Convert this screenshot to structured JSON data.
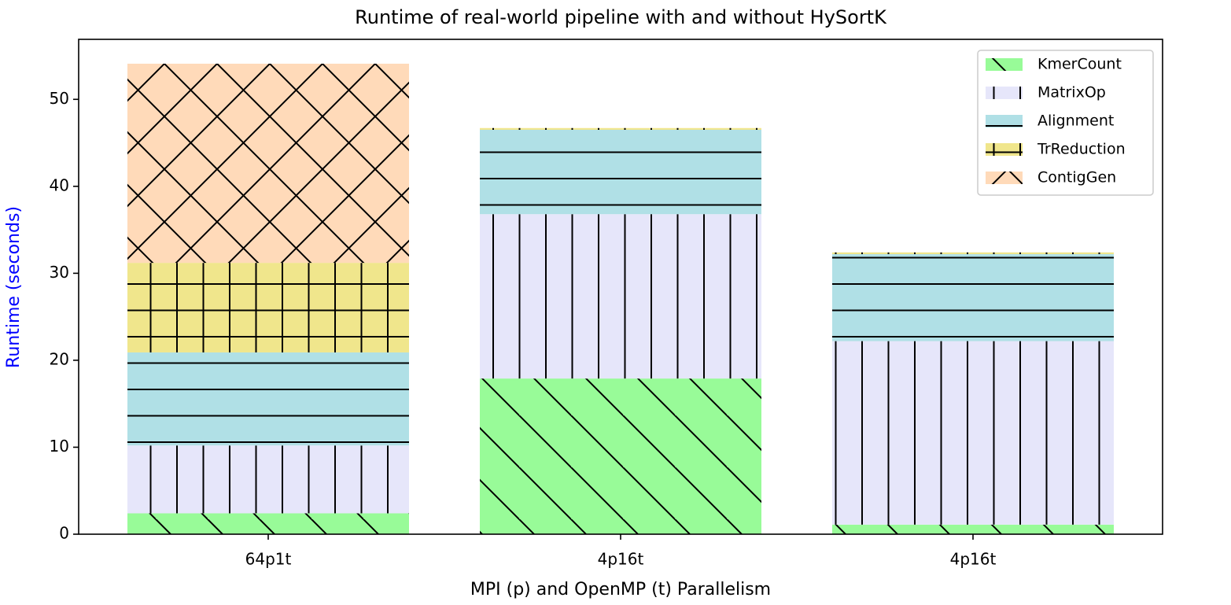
{
  "chart_data": {
    "type": "stacked_bar",
    "title": "Runtime of real-world pipeline with and without HySortK",
    "x_label": "MPI (p) and OpenMP (t) Parallelism",
    "y_label": "Runtime (seconds)",
    "categories": [
      "64p1t",
      "4p16t",
      "4p16t"
    ],
    "series": [
      {
        "name": "KmerCount",
        "color": "#98fb98",
        "values": [
          2.4,
          17.9,
          1.1
        ]
      },
      {
        "name": "MatrixOp",
        "color": "#e6e6fa",
        "values": [
          7.8,
          18.9,
          21.1
        ]
      },
      {
        "name": "Alignment",
        "color": "#b0e0e6",
        "values": [
          10.7,
          9.7,
          10.0
        ]
      },
      {
        "name": "TrReduction",
        "color": "#f0e68c",
        "values": [
          10.3,
          0.2,
          0.2
        ]
      },
      {
        "name": "ContigGen",
        "color": "#ffdab9",
        "values": [
          22.9,
          0,
          0
        ]
      }
    ],
    "ylim": [
      0,
      56.9
    ],
    "yticks": [
      0,
      10,
      20,
      30,
      40,
      50
    ],
    "legend": "upper right"
  }
}
